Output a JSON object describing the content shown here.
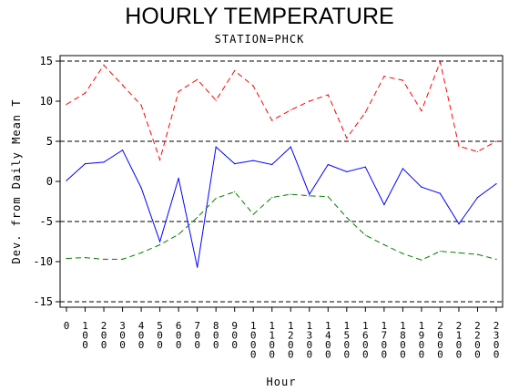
{
  "chart_data": {
    "type": "line",
    "title": "HOURLY TEMPERATURE",
    "subtitle": "STATION=PHCK",
    "xlabel": "Hour",
    "ylabel": "Dev. from Daily Mean T",
    "ylim": [
      -15,
      15
    ],
    "yticks": [
      -15,
      -10,
      -5,
      0,
      5,
      10,
      15
    ],
    "ytick_labels": [
      "-15",
      "-10",
      "-5",
      "0",
      "5",
      "10",
      "15"
    ],
    "reference_lines": [
      -15,
      -5,
      5,
      15
    ],
    "x": [
      0,
      100,
      200,
      300,
      400,
      500,
      600,
      700,
      800,
      900,
      1000,
      1100,
      1200,
      1300,
      1400,
      1500,
      1600,
      1700,
      1800,
      1900,
      2000,
      2100,
      2200,
      2300
    ],
    "x_tick_labels": [
      "0",
      "100",
      "200",
      "300",
      "400",
      "500",
      "600",
      "700",
      "800",
      "900",
      "1000",
      "1100",
      "1200",
      "1300",
      "1400",
      "1500",
      "1600",
      "1700",
      "1800",
      "1900",
      "2000",
      "2100",
      "2200",
      "2300"
    ],
    "grid": false,
    "series": [
      {
        "color": "#0000ff",
        "style": "solid",
        "values": [
          0.1,
          2.2,
          2.4,
          3.9,
          -0.8,
          -7.5,
          0.4,
          -10.7,
          4.3,
          2.2,
          2.6,
          2.1,
          4.3,
          -1.6,
          2.1,
          1.2,
          1.8,
          -2.9,
          1.6,
          -0.7,
          -1.5,
          -5.3,
          -2.0,
          -0.3
        ]
      },
      {
        "color": "#ff0000",
        "style": "dashed",
        "values": [
          9.6,
          11.0,
          14.5,
          12.0,
          9.5,
          2.7,
          11.2,
          12.7,
          10.1,
          13.8,
          11.9,
          7.6,
          8.9,
          10.0,
          10.8,
          5.4,
          8.6,
          13.1,
          12.6,
          8.8,
          14.9,
          4.4,
          3.7,
          5.0
        ]
      },
      {
        "color": "#008000",
        "style": "dashed",
        "values": [
          -9.6,
          -9.5,
          -9.7,
          -9.7,
          -8.9,
          -7.9,
          -6.6,
          -4.5,
          -2.1,
          -1.3,
          -4.1,
          -2.0,
          -1.6,
          -1.8,
          -1.9,
          -4.5,
          -6.7,
          -7.9,
          -9.0,
          -9.8,
          -8.7,
          -8.9,
          -9.1,
          -9.7
        ]
      }
    ]
  }
}
